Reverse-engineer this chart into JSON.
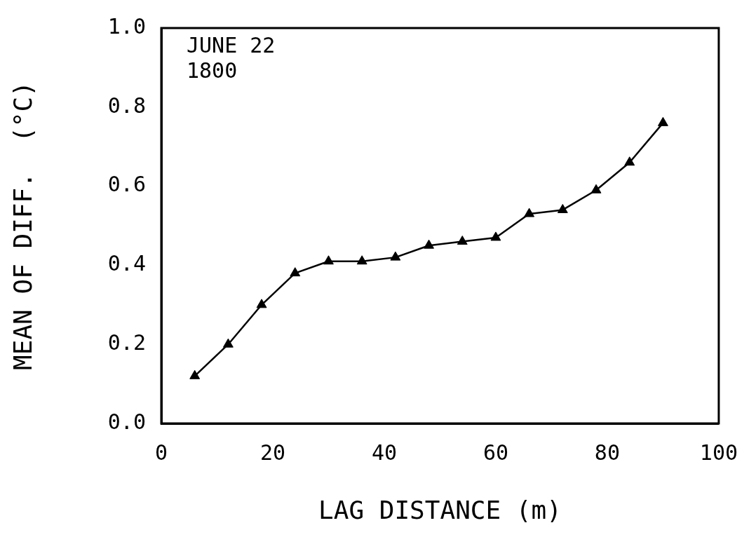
{
  "chart_data": {
    "type": "line",
    "xlabel": "LAG DISTANCE (m)",
    "ylabel": "MEAN OF DIFF.  (°C)",
    "annotations": [
      "JUNE 22",
      "1800"
    ],
    "x": [
      6,
      12,
      18,
      24,
      30,
      36,
      42,
      48,
      54,
      60,
      66,
      72,
      78,
      84,
      90
    ],
    "series": [
      {
        "color": "#000000",
        "values": [
          0.12,
          0.2,
          0.3,
          0.38,
          0.41,
          0.41,
          0.42,
          0.45,
          0.46,
          0.47,
          0.53,
          0.54,
          0.59,
          0.66,
          0.76
        ]
      }
    ],
    "xlim": [
      0,
      100
    ],
    "xticks": [
      0,
      20,
      40,
      60,
      80,
      100
    ],
    "ylim": [
      0,
      1
    ],
    "yticks": [
      {
        "value": 0,
        "label": "0.0"
      },
      {
        "value": 0.2,
        "label": "0.2"
      },
      {
        "value": 0.4,
        "label": "0.4"
      },
      {
        "value": 0.6,
        "label": "0.6"
      },
      {
        "value": 0.8,
        "label": "0.8"
      },
      {
        "value": 1,
        "label": "1.0"
      }
    ],
    "grid": false,
    "legend": false,
    "marker": "triangle",
    "line_style": "solid"
  }
}
